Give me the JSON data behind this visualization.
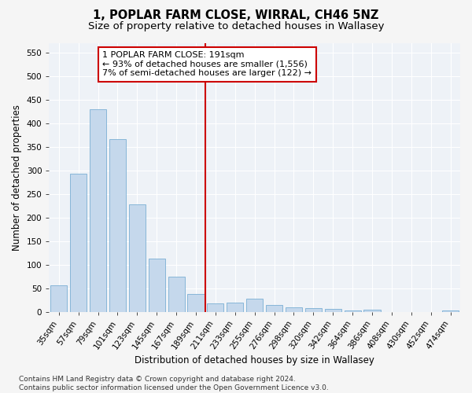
{
  "title_line1": "1, POPLAR FARM CLOSE, WIRRAL, CH46 5NZ",
  "title_line2": "Size of property relative to detached houses in Wallasey",
  "xlabel": "Distribution of detached houses by size in Wallasey",
  "ylabel": "Number of detached properties",
  "categories": [
    "35sqm",
    "57sqm",
    "79sqm",
    "101sqm",
    "123sqm",
    "145sqm",
    "167sqm",
    "189sqm",
    "211sqm",
    "233sqm",
    "255sqm",
    "276sqm",
    "298sqm",
    "320sqm",
    "342sqm",
    "364sqm",
    "386sqm",
    "408sqm",
    "430sqm",
    "452sqm",
    "474sqm"
  ],
  "values": [
    57,
    294,
    430,
    366,
    228,
    113,
    76,
    38,
    19,
    21,
    29,
    16,
    11,
    9,
    7,
    4,
    5,
    0,
    0,
    0,
    4
  ],
  "bar_color": "#c5d8ec",
  "bar_edge_color": "#7aafd4",
  "vline_color": "#cc0000",
  "annotation_text": "1 POPLAR FARM CLOSE: 191sqm\n← 93% of detached houses are smaller (1,556)\n7% of semi-detached houses are larger (122) →",
  "annotation_box_color": "#ffffff",
  "annotation_box_edge_color": "#cc0000",
  "ylim": [
    0,
    570
  ],
  "yticks": [
    0,
    50,
    100,
    150,
    200,
    250,
    300,
    350,
    400,
    450,
    500,
    550
  ],
  "plot_bg_color": "#eef2f7",
  "fig_bg_color": "#f5f5f5",
  "grid_color": "#ffffff",
  "footer_text": "Contains HM Land Registry data © Crown copyright and database right 2024.\nContains public sector information licensed under the Open Government Licence v3.0.",
  "title_fontsize": 10.5,
  "subtitle_fontsize": 9.5,
  "axis_label_fontsize": 8.5,
  "tick_fontsize": 7.5,
  "annotation_fontsize": 8,
  "footer_fontsize": 6.5
}
